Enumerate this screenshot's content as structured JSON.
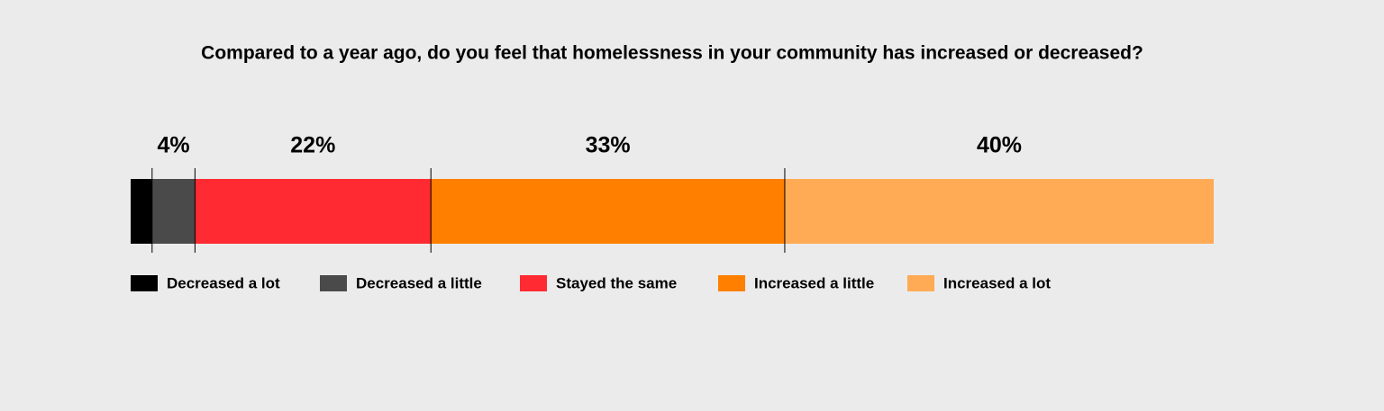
{
  "chart_data": {
    "type": "bar",
    "orientation": "horizontal",
    "stacked": true,
    "title": "Compared to a year ago, do you feel that homelessness in your community has increased or decreased?",
    "series": [
      {
        "name": "Decreased a lot",
        "color": "#000000",
        "values": [
          2
        ],
        "value_labels": [
          null
        ]
      },
      {
        "name": "Decreased a little",
        "color": "#4a4a4a",
        "values": [
          4
        ],
        "value_labels": [
          "4%"
        ]
      },
      {
        "name": "Stayed the same",
        "color": "#ff2a32",
        "values": [
          22
        ],
        "value_labels": [
          "22%"
        ]
      },
      {
        "name": "Increased a little",
        "color": "#ff7f00",
        "values": [
          33
        ],
        "value_labels": [
          "33%"
        ]
      },
      {
        "name": "Increased a lot",
        "color": "#ffaa55",
        "values": [
          40
        ],
        "value_labels": [
          "40%"
        ]
      }
    ]
  }
}
